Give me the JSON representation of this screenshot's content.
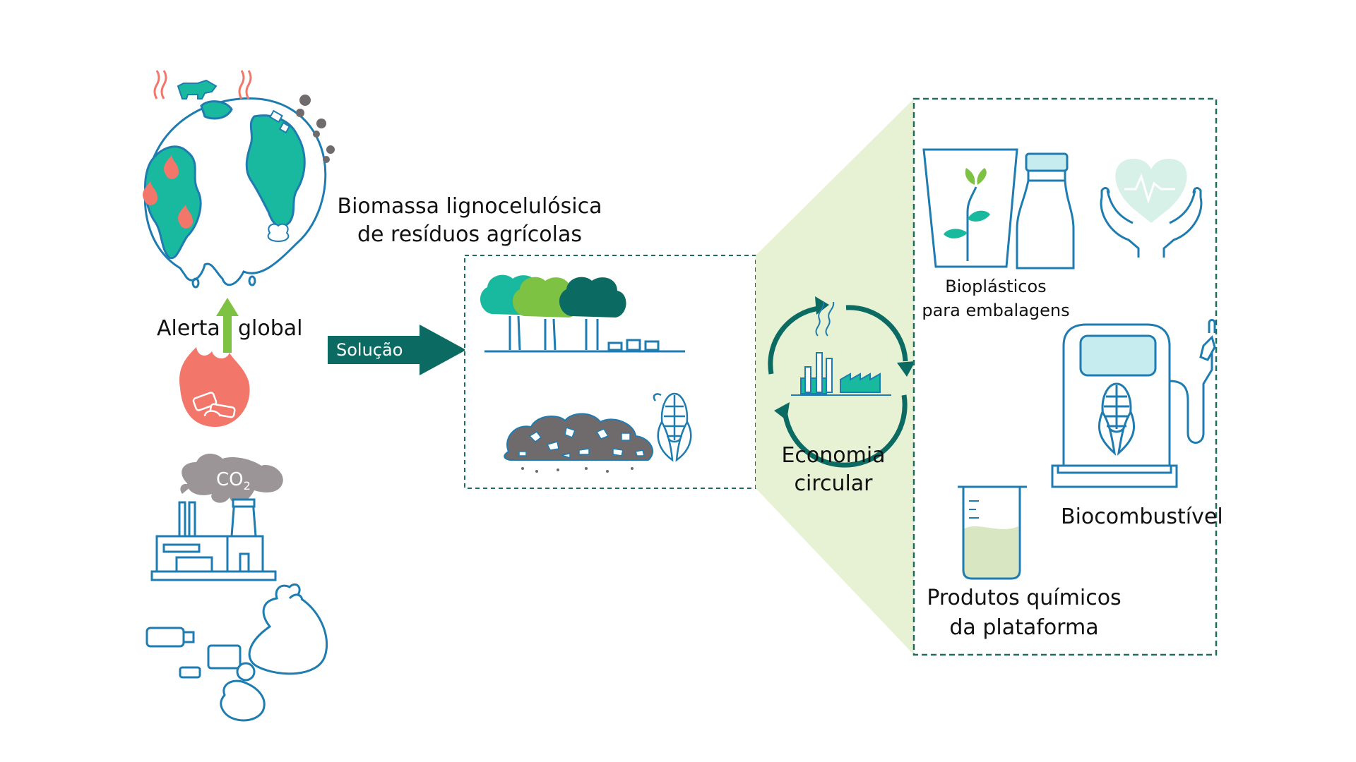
{
  "labels": {
    "alert_left": "Alerta",
    "alert_right": "global",
    "solution": "Solução",
    "co2_main": "CO",
    "co2_sub": "2",
    "biomass_line1": "Biomassa lignocelulósica",
    "biomass_line2": "de resíduos agrícolas",
    "circular_line1": "Economia",
    "circular_line2": "circular",
    "bioplastics_line1": "Bioplásticos",
    "bioplastics_line2": "para embalagens",
    "biofuel": "Biocombustível",
    "chemicals_line1": "Produtos químicos",
    "chemicals_line2": "da plataforma"
  },
  "colors": {
    "teal": "#19b9a0",
    "teal_dark": "#0b6b63",
    "blue_line": "#1e7cb0",
    "green_arrow": "#7dc242",
    "fire": "#f2766a",
    "smoke": "#9c9597",
    "panel_bg": "#e6f2d3",
    "dashed": "#1f6b5e"
  }
}
